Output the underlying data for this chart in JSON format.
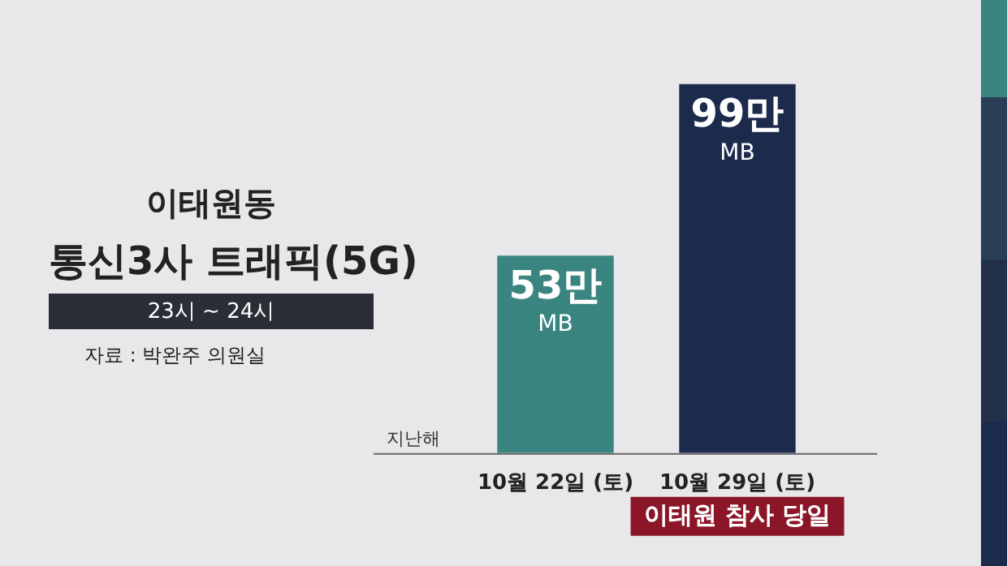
{
  "chart_data": {
    "type": "bar",
    "title": "이태원동",
    "subtitle": "통신3사 트래픽(5G)",
    "categories": [
      "10월 22일 (토)",
      "10월 29일 (토)"
    ],
    "values": [
      53,
      99
    ],
    "colors": [
      "#3a8580",
      "#1c2a4c"
    ],
    "value_labels": [
      "53만 MB",
      "99만 MB"
    ],
    "annotations": [
      "23시 ~ 24시",
      "자료 : 박완주 의원실",
      "지난해",
      "이태원 참사 당일"
    ],
    "legend": false
  }
}
